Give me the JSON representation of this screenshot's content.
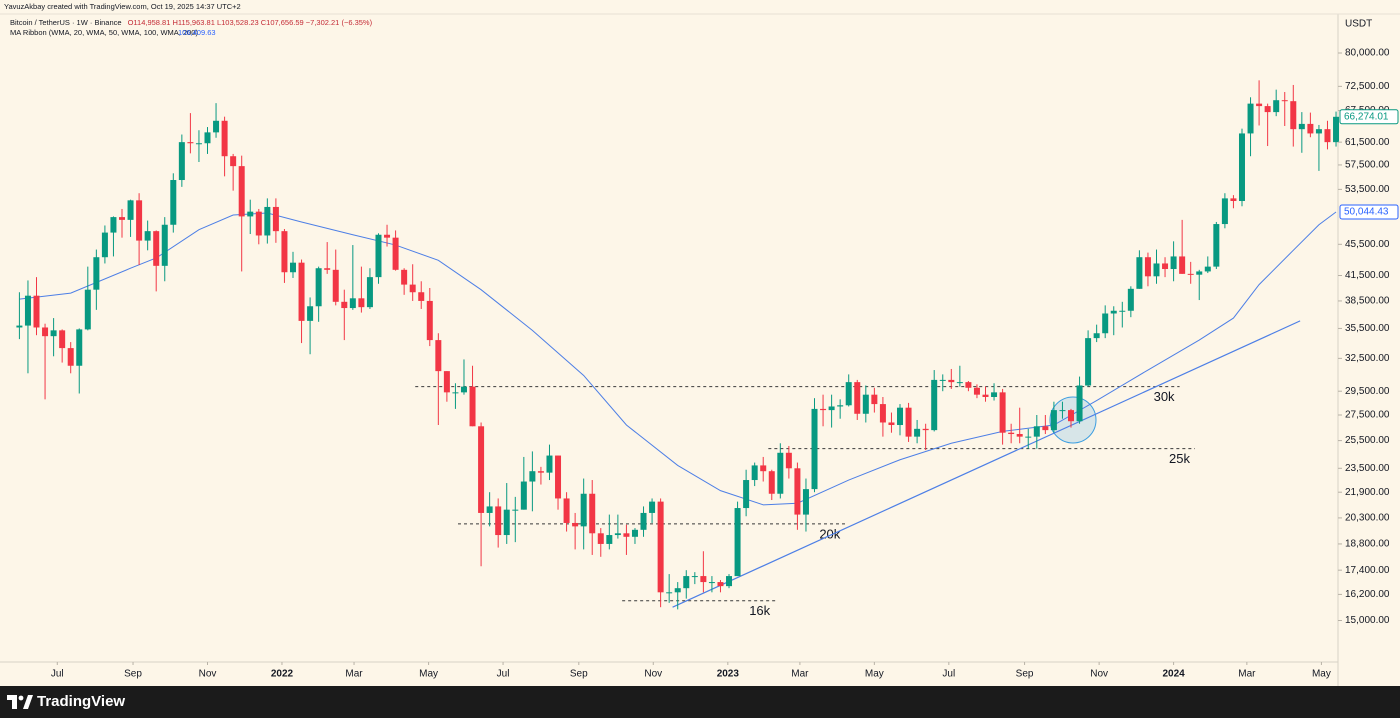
{
  "header": {
    "credit": "YavuzAkbay created with TradingView.com, Oct 19, 2025 14:37 UTC+2",
    "symbol": "Bitcoin / TetherUS · 1W · Binance",
    "ohlc": "O114,958.81 H115,963.81 L103,528.23 C107,656.59 −7,302.21 (−6.35%)",
    "indicator": "MA Ribbon (WMA, 20, WMA, 50, WMA, 100, WMA, 200)",
    "indicator_value": "106,409.63"
  },
  "chart_data": {
    "type": "candlestick",
    "currency": "USDT",
    "log_scale": true,
    "grid": false,
    "up_color": "#089981",
    "down_color": "#f23645",
    "open": [
      35600,
      35800,
      39100,
      35600,
      34700,
      35300,
      33500,
      31800,
      35400,
      39800,
      43800,
      47100,
      49300,
      48900,
      51800,
      46000,
      47300,
      42700,
      48200,
      55000,
      61500,
      61300,
      61300,
      63300,
      65500,
      59000,
      57300,
      49400,
      50100,
      46700,
      50800,
      47300,
      41900,
      43100,
      36300,
      37900,
      42400,
      42200,
      38400,
      37700,
      38800,
      37800,
      41300,
      46800,
      46400,
      42200,
      40400,
      39500,
      38500,
      34300,
      31300,
      29400,
      29400,
      29900,
      26600,
      20600,
      21000,
      19300,
      20800,
      20800,
      22600,
      23300,
      23200,
      24400,
      21500,
      20000,
      19800,
      21800,
      19400,
      18800,
      19300,
      19400,
      19200,
      19600,
      20600,
      21300,
      16300,
      16300,
      16500,
      17100,
      17100,
      16800,
      16800,
      16600,
      17100,
      20900,
      22700,
      23700,
      23300,
      21800,
      24600,
      23500,
      20500,
      22100,
      28000,
      27900,
      28200,
      28300,
      30300,
      27600,
      29200,
      28400,
      26900,
      26700,
      28100,
      25800,
      26400,
      26300,
      30500,
      30500,
      30300,
      30300,
      29800,
      29200,
      29000,
      29400,
      26100,
      26000,
      25800,
      25800,
      26600,
      26300,
      27900,
      27900,
      27000,
      30000,
      34500,
      35000,
      37100,
      37400,
      37400,
      39900,
      43800,
      41400,
      43000,
      42300,
      43900,
      41700,
      41600,
      42000,
      42600,
      48300,
      52100,
      51700,
      63100,
      68900,
      68400,
      67200,
      69600,
      69400,
      63900,
      64900,
      63100,
      63900,
      61500
    ],
    "high": [
      39500,
      40900,
      41300,
      36000,
      36600,
      35400,
      34100,
      35500,
      42600,
      44800,
      48100,
      49400,
      50500,
      51900,
      52900,
      48800,
      47400,
      49300,
      56100,
      62900,
      67000,
      63700,
      64300,
      69000,
      66300,
      59400,
      59100,
      51900,
      50500,
      52100,
      52100,
      47600,
      44500,
      43500,
      38900,
      42600,
      45800,
      44800,
      39800,
      45400,
      42600,
      42400,
      47000,
      48200,
      47400,
      42400,
      42900,
      40800,
      40000,
      35000,
      31300,
      30200,
      32400,
      31800,
      26900,
      21900,
      21500,
      22500,
      21600,
      24300,
      24700,
      23600,
      25200,
      24400,
      21900,
      20600,
      22800,
      22700,
      19700,
      20500,
      20500,
      19900,
      19700,
      21000,
      21500,
      21500,
      17200,
      16800,
      17400,
      17300,
      18400,
      17100,
      16900,
      17200,
      21300,
      23400,
      23900,
      24300,
      23400,
      25300,
      25100,
      23900,
      22800,
      28900,
      29200,
      29200,
      28800,
      31000,
      30500,
      30000,
      29800,
      29000,
      27700,
      28400,
      28500,
      27100,
      26800,
      31400,
      31000,
      31500,
      31800,
      30400,
      30100,
      29900,
      30200,
      29700,
      26800,
      28100,
      26400,
      27500,
      27500,
      28600,
      28600,
      28000,
      30800,
      35300,
      35900,
      38000,
      37900,
      38400,
      40200,
      44700,
      44400,
      44800,
      43800,
      45900,
      48900,
      43200,
      42200,
      43900,
      48600,
      52900,
      52600,
      64000,
      70200,
      73800,
      68900,
      71800,
      71300,
      72800,
      67200,
      67100,
      64700,
      65500,
      67300
    ],
    "low": [
      34400,
      31100,
      34800,
      28800,
      32700,
      32100,
      31100,
      29300,
      35300,
      37500,
      43000,
      43900,
      46400,
      46500,
      42800,
      44700,
      39600,
      40800,
      47100,
      53900,
      59500,
      58000,
      59400,
      62300,
      55600,
      53300,
      42000,
      46900,
      45500,
      45600,
      45700,
      40600,
      41200,
      34000,
      32900,
      36200,
      41700,
      38000,
      34300,
      37500,
      37200,
      37600,
      40500,
      45200,
      42100,
      39200,
      38500,
      37600,
      33700,
      26700,
      28600,
      28000,
      29200,
      26600,
      17600,
      19800,
      18600,
      18800,
      18900,
      20800,
      20700,
      22400,
      22700,
      20800,
      19500,
      18500,
      18500,
      18200,
      18100,
      18500,
      19100,
      18200,
      18800,
      19200,
      20000,
      15600,
      15800,
      15500,
      16000,
      16700,
      16300,
      16300,
      16300,
      16500,
      17100,
      20400,
      22300,
      22600,
      21400,
      21500,
      22800,
      19600,
      19500,
      21900,
      26600,
      26500,
      27200,
      28200,
      27100,
      26900,
      27700,
      25800,
      26100,
      25900,
      25400,
      25300,
      24800,
      26200,
      29500,
      29700,
      29900,
      29500,
      28900,
      28600,
      28700,
      25200,
      25300,
      25300,
      24900,
      24900,
      26000,
      26100,
      27200,
      26500,
      26800,
      29900,
      34100,
      34500,
      34800,
      35600,
      36700,
      39900,
      40200,
      40500,
      41300,
      40800,
      41700,
      40500,
      38600,
      41800,
      42300,
      47700,
      50600,
      50900,
      59000,
      64600,
      60800,
      66400,
      64500,
      60700,
      59600,
      62400,
      56500,
      60200,
      60700
    ],
    "close": [
      35800,
      39100,
      35600,
      34700,
      35300,
      33500,
      31800,
      35400,
      39800,
      43800,
      47100,
      49300,
      48900,
      51800,
      46000,
      47300,
      42700,
      48200,
      55000,
      61500,
      61300,
      61300,
      63300,
      65500,
      59000,
      57300,
      49400,
      50100,
      46700,
      50800,
      47300,
      41900,
      43100,
      36300,
      37900,
      42400,
      42200,
      38400,
      37700,
      38800,
      37800,
      41300,
      46800,
      46400,
      42200,
      40400,
      39500,
      38500,
      34300,
      31300,
      29400,
      29400,
      29900,
      26600,
      20600,
      21000,
      19300,
      20800,
      20800,
      22600,
      23300,
      23200,
      24400,
      21500,
      20000,
      19800,
      21800,
      19400,
      18800,
      19300,
      19400,
      19200,
      19600,
      20600,
      21300,
      16300,
      16300,
      16500,
      17100,
      17100,
      16800,
      16800,
      16600,
      17100,
      20900,
      22700,
      23700,
      23300,
      21800,
      24600,
      23500,
      20500,
      22100,
      28000,
      27900,
      28200,
      28300,
      30300,
      27600,
      29200,
      28400,
      26900,
      26700,
      28100,
      25800,
      26400,
      26300,
      30500,
      30500,
      30300,
      30300,
      29800,
      29200,
      29000,
      29400,
      26100,
      26000,
      25800,
      25800,
      26600,
      26300,
      27900,
      27900,
      27000,
      30000,
      34500,
      35000,
      37100,
      37400,
      37400,
      39900,
      43800,
      41400,
      43000,
      42300,
      43900,
      41700,
      41600,
      42000,
      42600,
      48300,
      52100,
      51700,
      63100,
      68900,
      68400,
      67200,
      69600,
      69400,
      63900,
      64900,
      63100,
      63900,
      61500,
      66274.01
    ],
    "ylim": [
      13350,
      89750
    ],
    "yticks": [
      {
        "value": 80000,
        "label": "80,000.00"
      },
      {
        "value": 72500,
        "label": "72,500.00"
      },
      {
        "value": 67500,
        "label": "67,500.00"
      },
      {
        "value": 61500,
        "label": "61,500.00"
      },
      {
        "value": 57500,
        "label": "57,500.00"
      },
      {
        "value": 53500,
        "label": "53,500.00"
      },
      {
        "value": 45500,
        "label": "45,500.00"
      },
      {
        "value": 41500,
        "label": "41,500.00"
      },
      {
        "value": 38500,
        "label": "38,500.00"
      },
      {
        "value": 35500,
        "label": "35,500.00"
      },
      {
        "value": 32500,
        "label": "32,500.00"
      },
      {
        "value": 29500,
        "label": "29,500.00"
      },
      {
        "value": 27500,
        "label": "27,500.00"
      },
      {
        "value": 25500,
        "label": "25,500.00"
      },
      {
        "value": 23500,
        "label": "23,500.00"
      },
      {
        "value": 21900,
        "label": "21,900.00"
      },
      {
        "value": 20300,
        "label": "20,300.00"
      },
      {
        "value": 18800,
        "label": "18,800.00"
      },
      {
        "value": 17400,
        "label": "17,400.00"
      },
      {
        "value": 16200,
        "label": "16,200.00"
      },
      {
        "value": 15000,
        "label": "15,000.00"
      }
    ],
    "xlim": [
      -2.27,
      154.23
    ],
    "xticks": [
      {
        "value": 4.43,
        "label": "Jul"
      },
      {
        "value": 13.29,
        "label": "Sep"
      },
      {
        "value": 22,
        "label": "Nov"
      },
      {
        "value": 30.71,
        "label": "2022"
      },
      {
        "value": 39.14,
        "label": "Mar"
      },
      {
        "value": 47.86,
        "label": "May"
      },
      {
        "value": 56.57,
        "label": "Jul"
      },
      {
        "value": 65.43,
        "label": "Sep"
      },
      {
        "value": 74.14,
        "label": "Nov"
      },
      {
        "value": 82.86,
        "label": "2023"
      },
      {
        "value": 91.29,
        "label": "Mar"
      },
      {
        "value": 100,
        "label": "May"
      },
      {
        "value": 108.71,
        "label": "Jul"
      },
      {
        "value": 117.57,
        "label": "Sep"
      },
      {
        "value": 126.29,
        "label": "Nov"
      },
      {
        "value": 135,
        "label": "2024"
      },
      {
        "value": 143.57,
        "label": "Mar"
      },
      {
        "value": 152.29,
        "label": "May"
      }
    ],
    "ma": {
      "color": "#4d7fe6",
      "x": [
        0,
        6,
        13,
        16,
        21,
        25,
        29,
        33,
        39,
        44,
        49,
        54,
        60,
        66,
        71,
        77,
        82,
        87,
        91,
        97,
        103,
        109,
        115,
        121,
        126,
        132,
        138,
        142,
        145,
        149,
        152,
        154
      ],
      "values": [
        38700,
        39400,
        42400,
        43700,
        47500,
        49600,
        49900,
        48600,
        46800,
        45400,
        43400,
        39800,
        35300,
        30900,
        26700,
        23700,
        22000,
        21100,
        21200,
        22700,
        24100,
        25300,
        26200,
        26700,
        28700,
        31400,
        34300,
        36600,
        40400,
        44700,
        48200,
        50044.43
      ]
    },
    "trendline": {
      "color": "#4d7fe6",
      "x": [
        76.4,
        149.8
      ],
      "values": [
        15600,
        36300
      ]
    },
    "levels": [
      {
        "label": "30k",
        "value": 29900,
        "x": [
          46.3,
          135.7
        ]
      },
      {
        "label": "25k",
        "value": 24900,
        "x": [
          87.6,
          137.5
        ]
      },
      {
        "label": "20k",
        "value": 19950,
        "x": [
          51.3,
          96.6
        ]
      },
      {
        "label": "16k",
        "value": 15900,
        "x": [
          70.5,
          88.4
        ]
      }
    ],
    "price_labels": [
      {
        "value": 66274.01,
        "label": "66,274.01",
        "color": "#089981"
      },
      {
        "value": 50044.43,
        "label": "50,044.43",
        "color": "#2962ff"
      }
    ]
  },
  "footer": {
    "brand": "TradingView"
  }
}
